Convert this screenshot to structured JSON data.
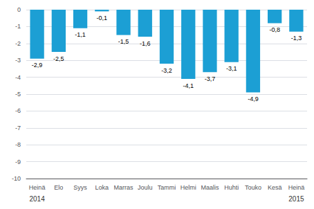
{
  "chart_data": {
    "type": "bar",
    "categories": [
      "Heinä",
      "Elo",
      "Syys",
      "Loka",
      "Marras",
      "Joulu",
      "Tammi",
      "Helmi",
      "Maalis",
      "Huhti",
      "Touko",
      "Kesä",
      "Heinä"
    ],
    "values": [
      -2.9,
      -2.5,
      -1.1,
      -0.1,
      -1.5,
      -1.6,
      -3.2,
      -4.1,
      -3.7,
      -3.1,
      -4.9,
      -0.8,
      -1.3
    ],
    "value_labels": [
      "-2,9",
      "-2,5",
      "-1,1",
      "-0,1",
      "-1,5",
      "-1,6",
      "-3,2",
      "-4,1",
      "-3,7",
      "-3,1",
      "-4,9",
      "-0,8",
      "-1,3"
    ],
    "data_labels": true,
    "color": "#1c9fd4",
    "annotations": [
      {
        "text": "2014",
        "x": 0
      },
      {
        "text": "2015",
        "x": 12
      }
    ],
    "ylim": [
      -10,
      0
    ],
    "yticks": [
      0,
      -1,
      -2,
      -3,
      -4,
      -5,
      -6,
      -7,
      -8,
      -9,
      -10
    ],
    "grid": true
  }
}
